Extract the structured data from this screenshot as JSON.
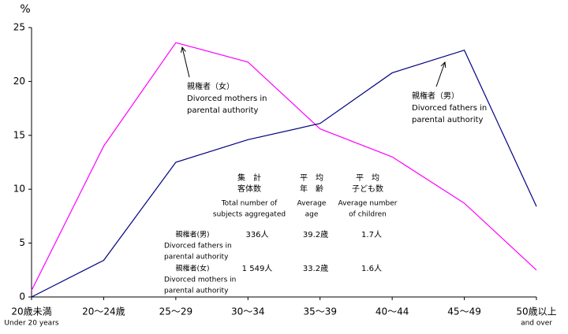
{
  "chart_data": {
    "type": "line",
    "y_unit": "%",
    "categories": [
      "20歳未満",
      "20〜24歳",
      "25〜29",
      "30〜34",
      "35〜39",
      "40〜44",
      "45〜49",
      "50歳以上"
    ],
    "category_notes": [
      "Under 20 years",
      null,
      null,
      null,
      null,
      null,
      null,
      "and over"
    ],
    "series": [
      {
        "name": "親権者（女）",
        "color": "#ff00ff",
        "values": [
          0.6,
          14.0,
          23.6,
          21.8,
          15.6,
          13.0,
          8.7,
          2.5
        ],
        "annotation": [
          "Divorced mothers in",
          "parental authority"
        ]
      },
      {
        "name": "親権者（男）",
        "color": "#000080",
        "values": [
          0,
          3.4,
          12.5,
          14.6,
          16.1,
          20.8,
          22.9,
          8.4
        ],
        "annotation": [
          "Divorced fathers in",
          "parental authority"
        ]
      }
    ],
    "ylim": [
      0,
      25
    ],
    "yticks": [
      0,
      5,
      10,
      15,
      20,
      25
    ],
    "table": {
      "columns": [
        {
          "ja": [
            "集　計",
            "客体数"
          ],
          "en": [
            "Total number of",
            "subjects aggregated"
          ]
        },
        {
          "ja": [
            "平　均",
            "年　齢"
          ],
          "en": [
            "Average",
            "age"
          ]
        },
        {
          "ja": [
            "平　均",
            "子ども数"
          ],
          "en": [
            "Average number",
            "of children"
          ]
        }
      ],
      "rows": [
        {
          "label": "親権者(男)",
          "label_en": [
            "Divorced fathers in",
            "parental authority"
          ],
          "cells": [
            "336人",
            "39.2歳",
            "1.7人"
          ]
        },
        {
          "label": "親権者(女)",
          "label_en": [
            "Divorced mothers in",
            "parental authority"
          ],
          "cells": [
            "1 549人",
            "33.2歳",
            "1.6人"
          ]
        }
      ]
    }
  }
}
